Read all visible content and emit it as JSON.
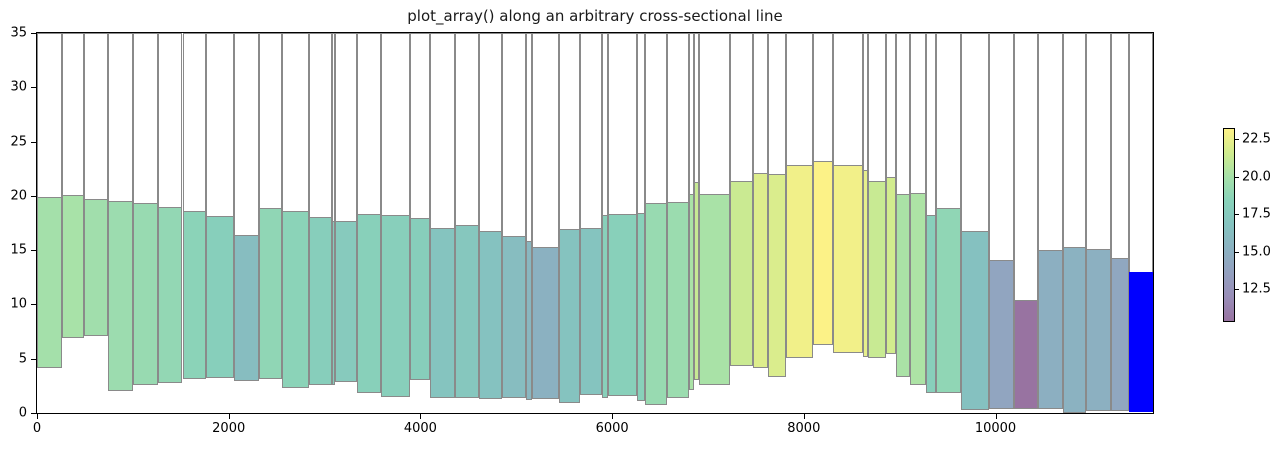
{
  "title": "plot_array() along an arbitrary cross-sectional line",
  "axes": {
    "xlim": [
      0,
      11643
    ],
    "ylim": [
      0,
      35
    ],
    "x_ticks": [
      0,
      2000,
      4000,
      6000,
      8000,
      10000
    ],
    "y_ticks": [
      0,
      5,
      10,
      15,
      20,
      25,
      30,
      35
    ]
  },
  "colorbar": {
    "vmin": 10.45,
    "vmax": 23.25,
    "ticks": [
      22.5,
      20.0,
      17.5,
      15.0,
      12.5
    ],
    "tick_decimals": 1
  },
  "chart_data": {
    "type": "bar",
    "title": "plot_array() along an arbitrary cross-sectional line",
    "xlabel": "",
    "ylabel": "",
    "grid": false,
    "bar_outline_extends_to": 35,
    "edge_color": "#8a8a8a",
    "special_color": "#0000ff",
    "alpha_on_white": 0.55,
    "colormap_name": "viridis",
    "colormap_stops": [
      [
        68,
        1,
        84
      ],
      [
        70,
        50,
        126
      ],
      [
        59,
        82,
        139
      ],
      [
        44,
        114,
        142
      ],
      [
        33,
        145,
        140
      ],
      [
        39,
        173,
        129
      ],
      [
        94,
        201,
        98
      ],
      [
        170,
        220,
        50
      ],
      [
        253,
        231,
        37
      ]
    ],
    "bars": [
      {
        "x0": 0,
        "x1": 262,
        "top": 19.9,
        "bottom": 4.15
      },
      {
        "x0": 262,
        "x1": 492,
        "top": 20.1,
        "bottom": 6.9
      },
      {
        "x0": 492,
        "x1": 743,
        "top": 19.75,
        "bottom": 7.05
      },
      {
        "x0": 743,
        "x1": 1005,
        "top": 19.5,
        "bottom": 2.0
      },
      {
        "x0": 1005,
        "x1": 1267,
        "top": 19.3,
        "bottom": 2.6
      },
      {
        "x0": 1267,
        "x1": 1518,
        "top": 19.0,
        "bottom": 2.75
      },
      {
        "x0": 1518,
        "x1": 1759,
        "top": 18.6,
        "bottom": 3.1
      },
      {
        "x0": 1759,
        "x1": 2052,
        "top": 18.1,
        "bottom": 3.2
      },
      {
        "x0": 2052,
        "x1": 2314,
        "top": 16.35,
        "bottom": 2.95
      },
      {
        "x0": 2314,
        "x1": 2555,
        "top": 18.85,
        "bottom": 3.1
      },
      {
        "x0": 2555,
        "x1": 2838,
        "top": 18.6,
        "bottom": 2.3
      },
      {
        "x0": 2838,
        "x1": 3078,
        "top": 18.05,
        "bottom": 2.6
      },
      {
        "x0": 3078,
        "x1": 3110,
        "top": 17.7,
        "bottom": 2.6
      },
      {
        "x0": 3110,
        "x1": 3340,
        "top": 17.65,
        "bottom": 2.9
      },
      {
        "x0": 3340,
        "x1": 3591,
        "top": 18.3,
        "bottom": 1.8
      },
      {
        "x0": 3591,
        "x1": 3895,
        "top": 18.2,
        "bottom": 1.5
      },
      {
        "x0": 3895,
        "x1": 4104,
        "top": 18.0,
        "bottom": 3.05
      },
      {
        "x0": 4104,
        "x1": 4356,
        "top": 17.0,
        "bottom": 1.4
      },
      {
        "x0": 4356,
        "x1": 4607,
        "top": 17.35,
        "bottom": 1.35
      },
      {
        "x0": 4607,
        "x1": 4848,
        "top": 16.8,
        "bottom": 1.3
      },
      {
        "x0": 4848,
        "x1": 5099,
        "top": 16.3,
        "bottom": 1.35
      },
      {
        "x0": 5099,
        "x1": 5162,
        "top": 15.8,
        "bottom": 1.2
      },
      {
        "x0": 5162,
        "x1": 5445,
        "top": 15.25,
        "bottom": 1.25
      },
      {
        "x0": 5445,
        "x1": 5665,
        "top": 16.95,
        "bottom": 0.9
      },
      {
        "x0": 5665,
        "x1": 5895,
        "top": 17.05,
        "bottom": 1.7
      },
      {
        "x0": 5895,
        "x1": 5958,
        "top": 18.25,
        "bottom": 1.4
      },
      {
        "x0": 5958,
        "x1": 6260,
        "top": 18.3,
        "bottom": 1.55
      },
      {
        "x0": 6260,
        "x1": 6340,
        "top": 18.4,
        "bottom": 1.1
      },
      {
        "x0": 6340,
        "x1": 6576,
        "top": 19.3,
        "bottom": 0.7
      },
      {
        "x0": 6576,
        "x1": 6806,
        "top": 19.45,
        "bottom": 1.4
      },
      {
        "x0": 6806,
        "x1": 6859,
        "top": 20.2,
        "bottom": 2.1
      },
      {
        "x0": 6859,
        "x1": 6911,
        "top": 21.3,
        "bottom": 3.0
      },
      {
        "x0": 6911,
        "x1": 7235,
        "top": 20.15,
        "bottom": 2.6
      },
      {
        "x0": 7235,
        "x1": 7466,
        "top": 21.4,
        "bottom": 4.3
      },
      {
        "x0": 7466,
        "x1": 7623,
        "top": 22.1,
        "bottom": 4.1
      },
      {
        "x0": 7623,
        "x1": 7811,
        "top": 22.0,
        "bottom": 3.3
      },
      {
        "x0": 7811,
        "x1": 8094,
        "top": 22.8,
        "bottom": 5.1
      },
      {
        "x0": 8094,
        "x1": 8304,
        "top": 23.2,
        "bottom": 6.3
      },
      {
        "x0": 8304,
        "x1": 8618,
        "top": 22.85,
        "bottom": 5.5
      },
      {
        "x0": 8618,
        "x1": 8670,
        "top": 22.4,
        "bottom": 5.2
      },
      {
        "x0": 8670,
        "x1": 8859,
        "top": 21.35,
        "bottom": 5.1
      },
      {
        "x0": 8859,
        "x1": 8963,
        "top": 21.7,
        "bottom": 5.4
      },
      {
        "x0": 8963,
        "x1": 9110,
        "top": 20.2,
        "bottom": 3.3
      },
      {
        "x0": 9110,
        "x1": 9277,
        "top": 20.3,
        "bottom": 2.6
      },
      {
        "x0": 9277,
        "x1": 9382,
        "top": 18.2,
        "bottom": 1.8
      },
      {
        "x0": 9382,
        "x1": 9644,
        "top": 18.85,
        "bottom": 1.8
      },
      {
        "x0": 9644,
        "x1": 9927,
        "top": 16.75,
        "bottom": 0.25
      },
      {
        "x0": 9927,
        "x1": 10188,
        "top": 14.1,
        "bottom": 0.35
      },
      {
        "x0": 10188,
        "x1": 10440,
        "top": 10.45,
        "bottom": 0.35
      },
      {
        "x0": 10440,
        "x1": 10702,
        "top": 15.0,
        "bottom": 0.35
      },
      {
        "x0": 10702,
        "x1": 10942,
        "top": 15.3,
        "bottom": 0.0
      },
      {
        "x0": 10942,
        "x1": 11204,
        "top": 15.1,
        "bottom": 0.2
      },
      {
        "x0": 11204,
        "x1": 11393,
        "top": 14.3,
        "bottom": 0.2
      },
      {
        "x0": 11393,
        "x1": 11643,
        "top": 12.95,
        "bottom": 0.1,
        "special": true
      }
    ]
  }
}
